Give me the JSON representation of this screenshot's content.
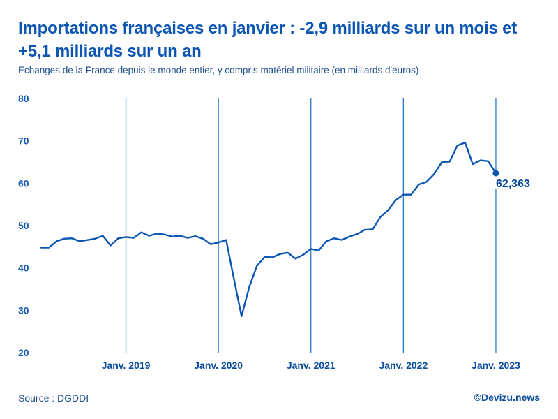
{
  "header": {
    "title": "Importations françaises en janvier : -2,9 milliards sur un mois et +5,1 milliards sur un an",
    "subtitle": "Echanges de la France depuis le monde entier, y compris matériel militaire (en milliards d'euros)"
  },
  "footer": {
    "source": "Source : DGDDI",
    "brand": "©Devizu.news"
  },
  "colors": {
    "line": "#0b55b3",
    "gridline": "#2a7cc7",
    "text": "#0b4c9c"
  },
  "chart_data": {
    "type": "line",
    "title": "Importations françaises en janvier : -2,9 milliards sur un mois et +5,1 milliards sur un an",
    "subtitle": "Echanges de la France depuis le monde entier, y compris matériel militaire (en milliards d'euros)",
    "xlabel": "",
    "ylabel": "",
    "ylim": [
      20,
      80
    ],
    "yticks": [
      20,
      30,
      40,
      50,
      60,
      70,
      80
    ],
    "grid": "vertical lines at January of each year",
    "start": "2018-02",
    "end": "2023-01",
    "xticks": [
      {
        "index": 11,
        "label": "Janv. 2019"
      },
      {
        "index": 23,
        "label": "Janv. 2020"
      },
      {
        "index": 35,
        "label": "Janv. 2021"
      },
      {
        "index": 47,
        "label": "Janv. 2022"
      },
      {
        "index": 59,
        "label": "Janv. 2023"
      }
    ],
    "series": [
      {
        "name": "Importations",
        "values": [
          44.8,
          44.8,
          46.3,
          46.9,
          47.0,
          46.3,
          46.6,
          46.9,
          47.6,
          45.3,
          47.0,
          47.3,
          47.1,
          48.4,
          47.6,
          48.1,
          47.9,
          47.4,
          47.6,
          47.1,
          47.5,
          46.9,
          45.6,
          46.0,
          46.6,
          37.5,
          28.6,
          35.5,
          40.5,
          42.6,
          42.5,
          43.3,
          43.6,
          42.2,
          43.1,
          44.5,
          44.1,
          46.3,
          47.0,
          46.6,
          47.4,
          48.0,
          49.0,
          49.1,
          52.0,
          53.6,
          56.0,
          57.3,
          57.3,
          59.7,
          60.3,
          62.2,
          65.0,
          65.1,
          68.9,
          69.6,
          64.5,
          65.4,
          65.2,
          62.363
        ]
      }
    ],
    "last_label": "62,363"
  }
}
